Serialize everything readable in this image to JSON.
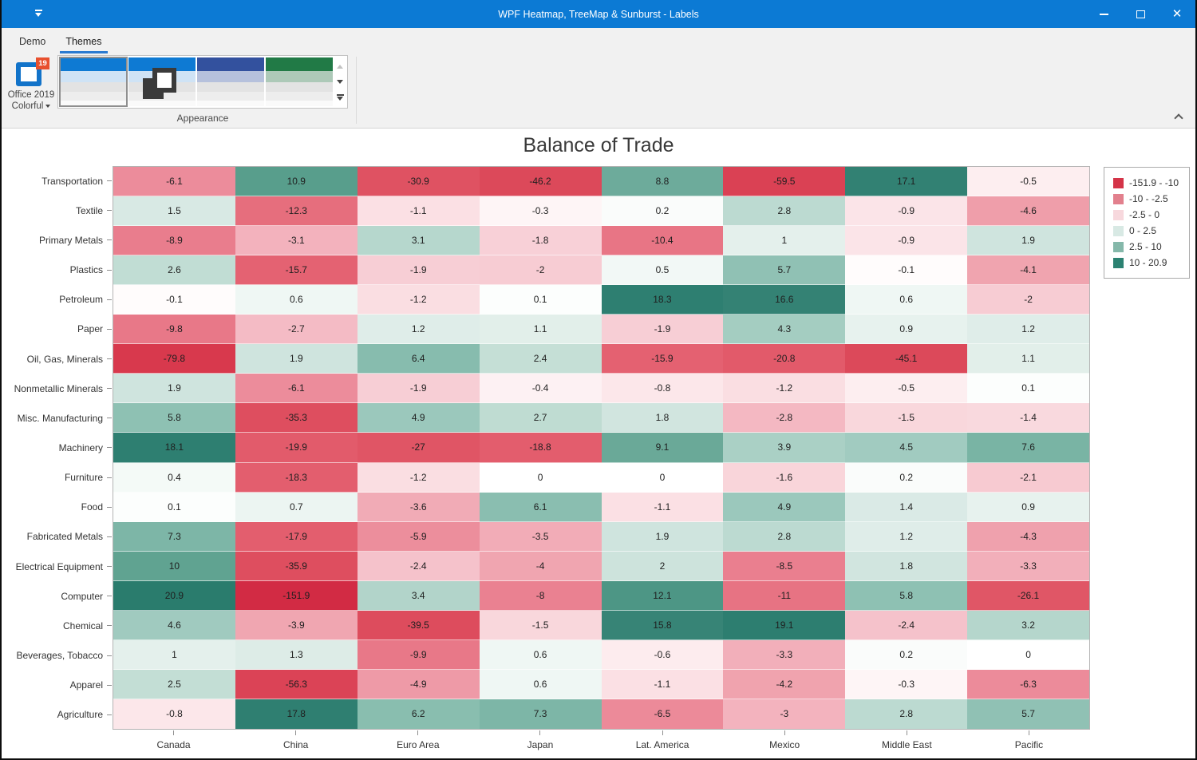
{
  "window": {
    "title": "WPF Heatmap, TreeMap & Sunburst - Labels"
  },
  "ribbon": {
    "tabs": [
      {
        "label": "Demo",
        "active": false
      },
      {
        "label": "Themes",
        "active": true
      }
    ],
    "theme_button": {
      "line1": "Office 2019",
      "line2": "Colorful",
      "badge": "19"
    },
    "group_label": "Appearance",
    "gallery": {
      "items": [
        {
          "selected": true,
          "overlay_squares_icon": false,
          "stripes": [
            "#0e7ad3",
            "#cfe3f5",
            "#e3e3e3",
            "#ededed"
          ]
        },
        {
          "selected": false,
          "overlay_squares_icon": true,
          "stripes": [
            "#0e7ad3",
            "#cfe3f5",
            "#e3e3e3",
            "#ededed"
          ]
        },
        {
          "selected": false,
          "overlay_squares_icon": false,
          "stripes": [
            "#33519e",
            "#b6c1dc",
            "#e3e3e3",
            "#ededed"
          ]
        },
        {
          "selected": false,
          "overlay_squares_icon": false,
          "stripes": [
            "#217a46",
            "#adc9b8",
            "#e3e3e3",
            "#ededed"
          ]
        }
      ]
    }
  },
  "chart_data": {
    "type": "heatmap",
    "title": "Balance of Trade",
    "columns": [
      "Canada",
      "China",
      "Euro Area",
      "Japan",
      "Lat. America",
      "Mexico",
      "Middle East",
      "Pacific"
    ],
    "rows": [
      "Transportation",
      "Textile",
      "Primary Metals",
      "Plastics",
      "Petroleum",
      "Paper",
      "Oil, Gas, Minerals",
      "Nonmetallic Minerals",
      "Misc. Manufacturing",
      "Machinery",
      "Furniture",
      "Food",
      "Fabricated Metals",
      "Electrical Equipment",
      "Computer",
      "Chemical",
      "Beverages, Tobacco",
      "Apparel",
      "Agriculture"
    ],
    "values": [
      [
        -6.1,
        10.9,
        -30.9,
        -46.2,
        8.8,
        -59.5,
        17.1,
        -0.5
      ],
      [
        1.5,
        -12.3,
        -1.1,
        -0.3,
        0.2,
        2.8,
        -0.9,
        -4.6
      ],
      [
        -8.9,
        -3.1,
        3.1,
        -1.8,
        -10.4,
        1,
        -0.9,
        1.9
      ],
      [
        2.6,
        -15.7,
        -1.9,
        -2,
        0.5,
        5.7,
        -0.1,
        -4.1
      ],
      [
        -0.1,
        0.6,
        -1.2,
        0.1,
        18.3,
        16.6,
        0.6,
        -2
      ],
      [
        -9.8,
        -2.7,
        1.2,
        1.1,
        -1.9,
        4.3,
        0.9,
        1.2
      ],
      [
        -79.8,
        1.9,
        6.4,
        2.4,
        -15.9,
        -20.8,
        -45.1,
        1.1
      ],
      [
        1.9,
        -6.1,
        -1.9,
        -0.4,
        -0.8,
        -1.2,
        -0.5,
        0.1
      ],
      [
        5.8,
        -35.3,
        4.9,
        2.7,
        1.8,
        -2.8,
        -1.5,
        -1.4
      ],
      [
        18.1,
        -19.9,
        -27,
        -18.8,
        9.1,
        3.9,
        4.5,
        7.6
      ],
      [
        0.4,
        -18.3,
        -1.2,
        0,
        0,
        -1.6,
        0.2,
        -2.1
      ],
      [
        0.1,
        0.7,
        -3.6,
        6.1,
        -1.1,
        4.9,
        1.4,
        0.9
      ],
      [
        7.3,
        -17.9,
        -5.9,
        -3.5,
        1.9,
        2.8,
        1.2,
        -4.3
      ],
      [
        10,
        -35.9,
        -2.4,
        -4,
        2,
        -8.5,
        1.8,
        -3.3
      ],
      [
        20.9,
        -151.9,
        3.4,
        -8,
        12.1,
        -11,
        5.8,
        -26.1
      ],
      [
        4.6,
        -3.9,
        -39.5,
        -1.5,
        15.8,
        19.1,
        -2.4,
        3.2
      ],
      [
        1,
        1.3,
        -9.9,
        0.6,
        -0.6,
        -3.3,
        0.2,
        0
      ],
      [
        2.5,
        -56.3,
        -4.9,
        0.6,
        -1.1,
        -4.2,
        -0.3,
        -6.3
      ],
      [
        -0.8,
        17.8,
        6.2,
        7.3,
        -6.5,
        -3,
        2.8,
        5.7
      ]
    ],
    "value_range": [
      -151.9,
      20.9
    ],
    "legend_position": "right",
    "legend": [
      {
        "label": "-151.9 - -10",
        "color": "#d43448"
      },
      {
        "label": "-10 - -2.5",
        "color": "#e2808d"
      },
      {
        "label": "-2.5 - 0",
        "color": "#f7d8dd"
      },
      {
        "label": "0 - 2.5",
        "color": "#d8e9e4"
      },
      {
        "label": "2.5 - 10",
        "color": "#85b8aa"
      },
      {
        "label": "10 - 20.9",
        "color": "#2c8272"
      }
    ],
    "color_scale": {
      "negative_anchors": [
        [
          0,
          "#ffffff"
        ],
        [
          -0.5,
          "#fdeef0"
        ],
        [
          -1,
          "#fbe2e6"
        ],
        [
          -1.5,
          "#f9d7dc"
        ],
        [
          -2,
          "#f7ccd3"
        ],
        [
          -2.5,
          "#f5c0c9"
        ],
        [
          -3,
          "#f3b3be"
        ],
        [
          -4,
          "#f0a5b0"
        ],
        [
          -5,
          "#ee99a6"
        ],
        [
          -6,
          "#ec8d9b"
        ],
        [
          -8,
          "#ea8191"
        ],
        [
          -10,
          "#e87787"
        ],
        [
          -13,
          "#e66b7a"
        ],
        [
          -16,
          "#e46171"
        ],
        [
          -20,
          "#e25b6b"
        ],
        [
          -27,
          "#e05565"
        ],
        [
          -35,
          "#de4e5f"
        ],
        [
          -46,
          "#dc495a"
        ],
        [
          -60,
          "#da4154"
        ],
        [
          -80,
          "#d8394d"
        ],
        [
          -152,
          "#d22b44"
        ]
      ],
      "positive_anchors": [
        [
          0,
          "#ffffff"
        ],
        [
          0.3,
          "#f7fbf9"
        ],
        [
          0.6,
          "#eff7f4"
        ],
        [
          1,
          "#e4f0ec"
        ],
        [
          1.5,
          "#d8e9e4"
        ],
        [
          2,
          "#cde3dc"
        ],
        [
          2.5,
          "#c3ded5"
        ],
        [
          3,
          "#b8d8ce"
        ],
        [
          4,
          "#a8cfc4"
        ],
        [
          5,
          "#9ac7bb"
        ],
        [
          6,
          "#8bbfb1"
        ],
        [
          7,
          "#80b8a9"
        ],
        [
          8,
          "#75b1a1"
        ],
        [
          9,
          "#6baa99"
        ],
        [
          10,
          "#60a391"
        ],
        [
          12,
          "#4e9786"
        ],
        [
          14,
          "#408c7b"
        ],
        [
          16,
          "#368375"
        ],
        [
          18,
          "#2e7f71"
        ],
        [
          21,
          "#2a7c6d"
        ]
      ]
    }
  }
}
